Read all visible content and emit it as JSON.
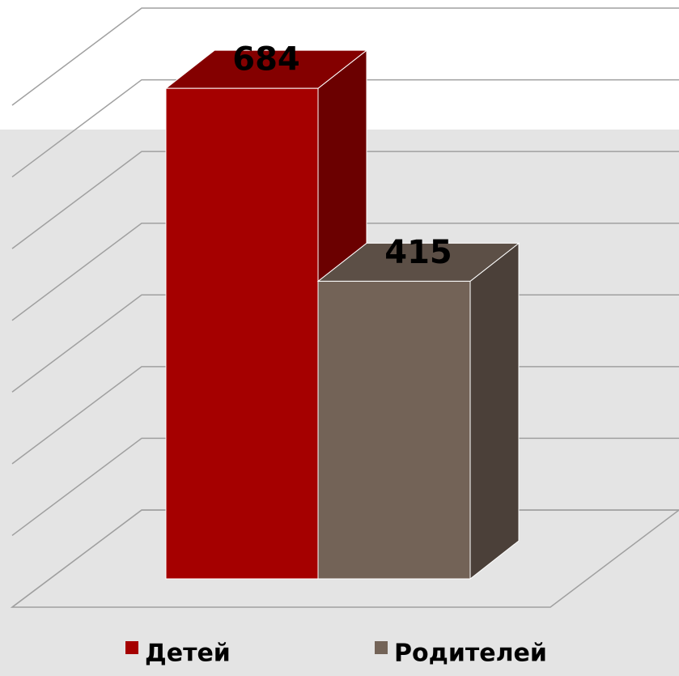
{
  "chart_data": {
    "type": "bar3d",
    "series": [
      {
        "name": "Детей",
        "color": "#a50000",
        "values": [
          684
        ]
      },
      {
        "name": "Родителей",
        "color": "#736357",
        "values": [
          415
        ]
      }
    ],
    "ylim": [
      0,
      700
    ],
    "yticks": [
      0,
      100,
      200,
      300,
      400,
      500,
      600,
      700
    ],
    "grid": true,
    "legend": "bottom"
  }
}
